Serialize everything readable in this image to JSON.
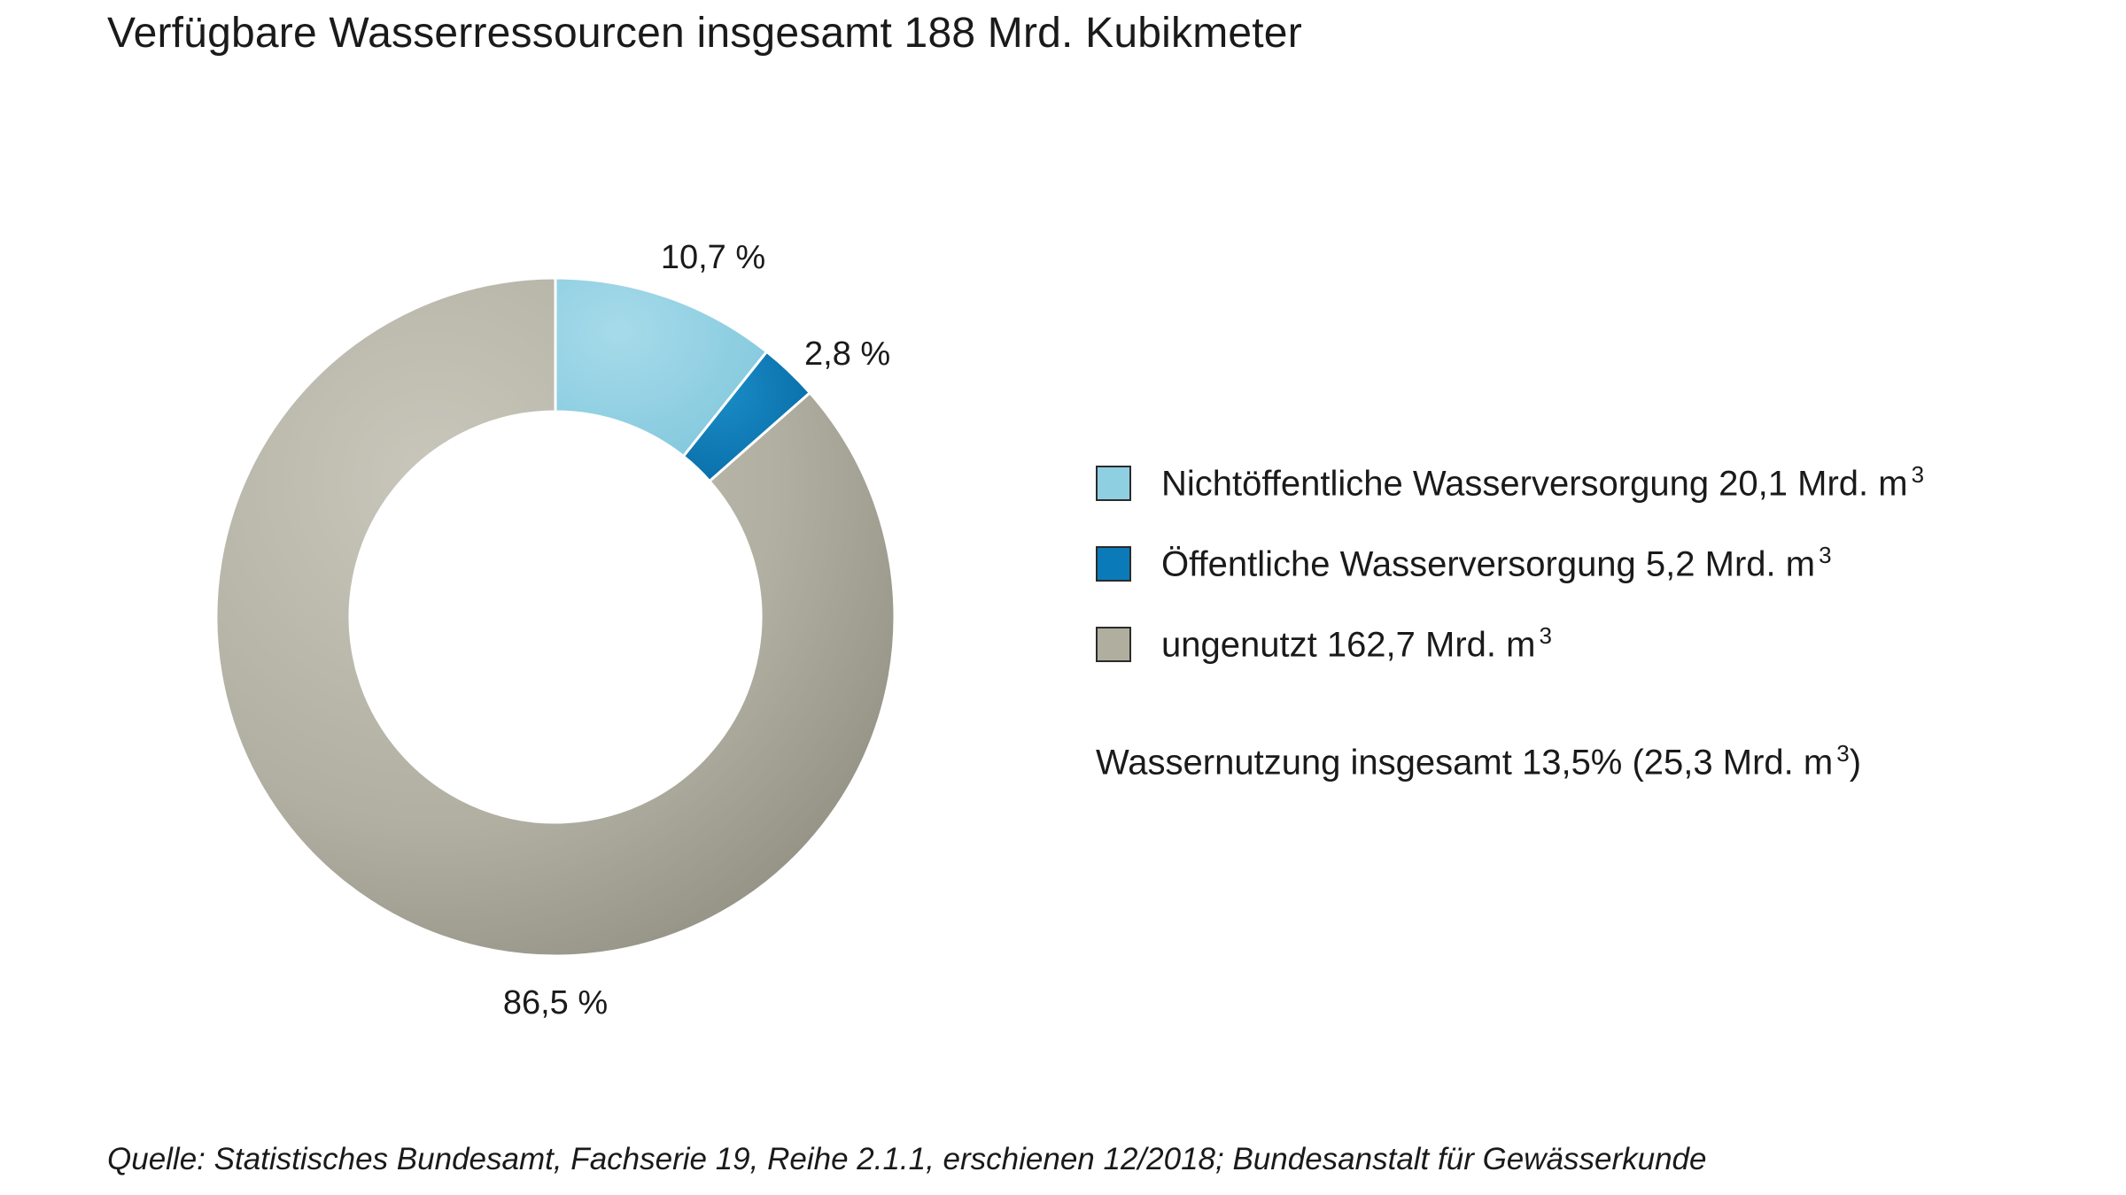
{
  "title": "Verfügbare Wasserressourcen insgesamt 188 Mrd. Kubikmeter",
  "chart_data": {
    "type": "pie",
    "variant": "donut",
    "title": "Verfügbare Wasserressourcen insgesamt 188 Mrd. Kubikmeter",
    "legend_position": "right",
    "slices": [
      {
        "name": "Nichtöffentliche Wasserversorgung",
        "percent": 10.7,
        "label": "10,7 %",
        "value": 20.1,
        "legend_text": "Nichtöffentliche Wasserversorgung 20,1 Mrd. m",
        "color": "#8fcfe2"
      },
      {
        "name": "Öffentliche Wasserversorgung",
        "percent": 2.8,
        "label": "2,8 %",
        "value": 5.2,
        "legend_text": "Öffentliche Wasserversorgung 5,2 Mrd. m",
        "color": "#0a7bb8"
      },
      {
        "name": "ungenutzt",
        "percent": 86.5,
        "label": "86,5 %",
        "value": 162.7,
        "legend_text": "ungenutzt 162,7 Mrd. m",
        "color": "#b0ae9f"
      }
    ],
    "unit_superscript": "3"
  },
  "summary": {
    "text_before_sup": "Wassernutzung insgesamt 13,5% (25,3 Mrd. m",
    "sup": "3",
    "text_after_sup": ")"
  },
  "source": "Quelle: Statistisches Bundesamt, Fachserie 19, Reihe 2.1.1, erschienen 12/2018; Bundesanstalt für Gewässerkunde"
}
